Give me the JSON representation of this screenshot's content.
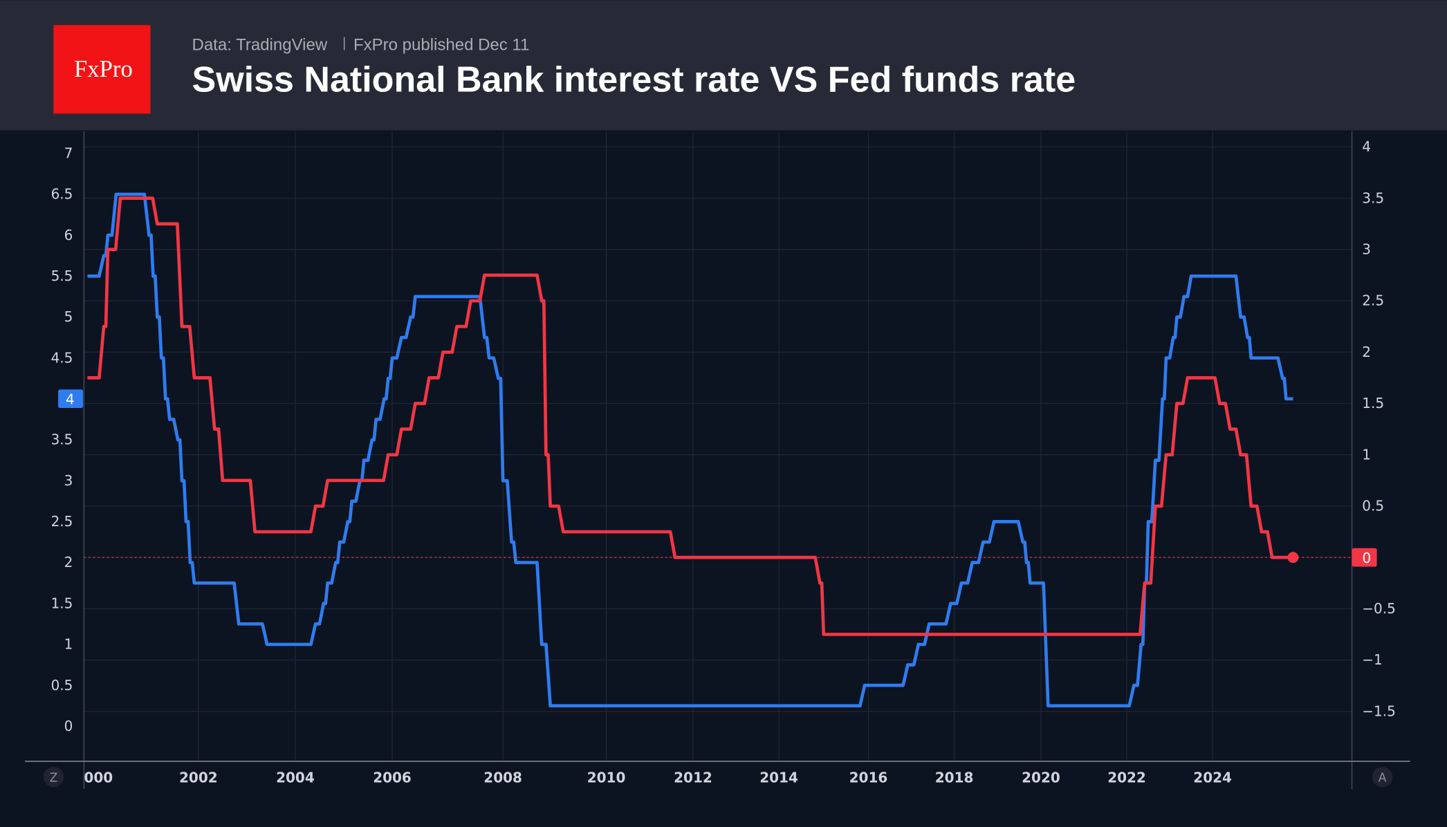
{
  "header": {
    "logo_text": "FxPro",
    "source": "Data: TradingView",
    "published": "FxPro published Dec 11",
    "title": "Swiss National Bank interest rate VS Fed funds rate"
  },
  "controls": {
    "left_button": "Z",
    "right_button": "A"
  },
  "colors": {
    "header_bg": "#272a36",
    "chart_bg": "#0d1421",
    "logo": "#f11315",
    "fed": "#2f7cf0",
    "snb": "#f23645"
  },
  "chart_data": {
    "type": "line",
    "title": "Swiss National Bank interest rate VS Fed funds rate",
    "x_ticks": [
      "2002",
      "2004",
      "2006",
      "2008",
      "2010",
      "2012",
      "2014",
      "2016",
      "2018",
      "2020",
      "2022",
      "2024"
    ],
    "x_first_label": "000",
    "grid": true,
    "left_axis": {
      "range": [
        0,
        7
      ],
      "ticks": [
        "0",
        "0.5",
        "1",
        "1.5",
        "2",
        "2.5",
        "3",
        "3.5",
        "4",
        "4.5",
        "5",
        "5.5",
        "6",
        "6.5",
        "7"
      ],
      "last_value_label": "4"
    },
    "right_axis": {
      "range": [
        -1.5,
        4
      ],
      "ticks": [
        "−1.5",
        "−1",
        "−0.5",
        "0",
        "0.5",
        "1",
        "1.5",
        "2",
        "2.5",
        "3",
        "3.5",
        "4"
      ],
      "last_value_label": "0"
    },
    "series": [
      {
        "axis": "left",
        "color": "#2f7cf0",
        "step": true,
        "points": [
          [
            "1999-10",
            5.5
          ],
          [
            "2000-02",
            5.75
          ],
          [
            "2000-03",
            6.0
          ],
          [
            "2000-05",
            6.5
          ],
          [
            "2001-01",
            6.0
          ],
          [
            "2001-02",
            5.5
          ],
          [
            "2001-03",
            5.0
          ],
          [
            "2001-04",
            4.5
          ],
          [
            "2001-05",
            4.0
          ],
          [
            "2001-06",
            3.75
          ],
          [
            "2001-08",
            3.5
          ],
          [
            "2001-09",
            3.0
          ],
          [
            "2001-10",
            2.5
          ],
          [
            "2001-11",
            2.0
          ],
          [
            "2001-12",
            1.75
          ],
          [
            "2002-11",
            1.25
          ],
          [
            "2003-06",
            1.0
          ],
          [
            "2004-06",
            1.25
          ],
          [
            "2004-08",
            1.5
          ],
          [
            "2004-09",
            1.75
          ],
          [
            "2004-11",
            2.0
          ],
          [
            "2004-12",
            2.25
          ],
          [
            "2005-02",
            2.5
          ],
          [
            "2005-03",
            2.75
          ],
          [
            "2005-05",
            3.0
          ],
          [
            "2005-06",
            3.25
          ],
          [
            "2005-08",
            3.5
          ],
          [
            "2005-09",
            3.75
          ],
          [
            "2005-11",
            4.0
          ],
          [
            "2005-12",
            4.25
          ],
          [
            "2006-01",
            4.5
          ],
          [
            "2006-03",
            4.75
          ],
          [
            "2006-05",
            5.0
          ],
          [
            "2006-06",
            5.25
          ],
          [
            "2007-09",
            4.75
          ],
          [
            "2007-10",
            4.5
          ],
          [
            "2007-12",
            4.25
          ],
          [
            "2008-01",
            3.0
          ],
          [
            "2008-03",
            2.25
          ],
          [
            "2008-04",
            2.0
          ],
          [
            "2008-10",
            1.0
          ],
          [
            "2008-12",
            0.25
          ],
          [
            "2015-12",
            0.5
          ],
          [
            "2016-12",
            0.75
          ],
          [
            "2017-03",
            1.0
          ],
          [
            "2017-06",
            1.25
          ],
          [
            "2017-12",
            1.5
          ],
          [
            "2018-03",
            1.75
          ],
          [
            "2018-06",
            2.0
          ],
          [
            "2018-09",
            2.25
          ],
          [
            "2018-12",
            2.5
          ],
          [
            "2019-08",
            2.25
          ],
          [
            "2019-09",
            2.0
          ],
          [
            "2019-10",
            1.75
          ],
          [
            "2020-03",
            0.25
          ],
          [
            "2022-03",
            0.5
          ],
          [
            "2022-05",
            1.0
          ],
          [
            "2022-06",
            1.75
          ],
          [
            "2022-07",
            2.5
          ],
          [
            "2022-09",
            3.25
          ],
          [
            "2022-11",
            4.0
          ],
          [
            "2022-12",
            4.5
          ],
          [
            "2023-02",
            4.75
          ],
          [
            "2023-03",
            5.0
          ],
          [
            "2023-05",
            5.25
          ],
          [
            "2023-07",
            5.5
          ],
          [
            "2024-09",
            5.0
          ],
          [
            "2024-11",
            4.75
          ],
          [
            "2024-12",
            4.5
          ],
          [
            "2025-09",
            4.25
          ],
          [
            "2025-10",
            4.0
          ],
          [
            "2025-12",
            4.0
          ]
        ]
      },
      {
        "axis": "right",
        "color": "#f23645",
        "step": true,
        "points": [
          [
            "1999-10",
            1.75
          ],
          [
            "2000-02",
            2.25
          ],
          [
            "2000-03",
            3.0
          ],
          [
            "2000-06",
            3.5
          ],
          [
            "2001-03",
            3.25
          ],
          [
            "2001-09",
            2.25
          ],
          [
            "2001-12",
            1.75
          ],
          [
            "2002-05",
            1.25
          ],
          [
            "2002-07",
            0.75
          ],
          [
            "2003-03",
            0.25
          ],
          [
            "2004-06",
            0.5
          ],
          [
            "2004-09",
            0.75
          ],
          [
            "2005-12",
            1.0
          ],
          [
            "2006-03",
            1.25
          ],
          [
            "2006-06",
            1.5
          ],
          [
            "2006-09",
            1.75
          ],
          [
            "2006-12",
            2.0
          ],
          [
            "2007-03",
            2.25
          ],
          [
            "2007-06",
            2.5
          ],
          [
            "2007-09",
            2.75
          ],
          [
            "2008-10",
            2.5
          ],
          [
            "2008-11",
            1.0
          ],
          [
            "2008-12",
            0.5
          ],
          [
            "2009-03",
            0.25
          ],
          [
            "2011-08",
            0.0
          ],
          [
            "2014-12",
            -0.25
          ],
          [
            "2015-01",
            -0.75
          ],
          [
            "2022-06",
            -0.25
          ],
          [
            "2022-09",
            0.5
          ],
          [
            "2022-12",
            1.0
          ],
          [
            "2023-03",
            1.5
          ],
          [
            "2023-06",
            1.75
          ],
          [
            "2024-03",
            1.5
          ],
          [
            "2024-06",
            1.25
          ],
          [
            "2024-09",
            1.0
          ],
          [
            "2024-12",
            0.5
          ],
          [
            "2025-03",
            0.25
          ],
          [
            "2025-06",
            0.0
          ],
          [
            "2025-12",
            0.0
          ]
        ]
      }
    ]
  }
}
